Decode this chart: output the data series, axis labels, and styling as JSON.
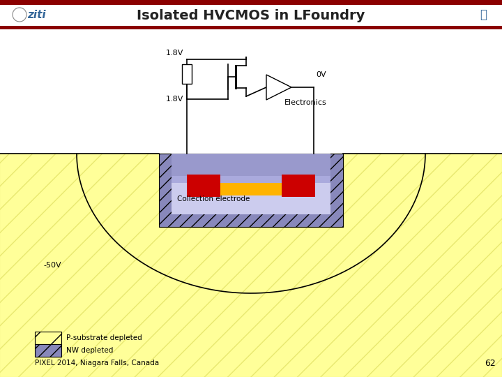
{
  "title": "Isolated HVCMOS in LFoundry",
  "title_color": "#222222",
  "header_bar_color": "#8B0000",
  "header_bg": "#ffffff",
  "fig_bg": "#ffffff",
  "label_1_8v_top": "1.8V",
  "label_0v": "0V",
  "label_1_8v_left": "1.8V",
  "label_minus50v": "-50V",
  "label_electronics": "Electronics",
  "label_collection": "Collection electrode",
  "label_psub": "P-substrate depleted",
  "label_nw": "NW depleted",
  "label_pixel": "PIXEL 2014, Niagara Falls, Canada",
  "label_page": "62",
  "color_psub_yellow": "#FFFFF0",
  "color_psub_yellow2": "#FFFF99",
  "color_nw_purple": "#8888BB",
  "color_nw_purple2": "#9999CC",
  "color_nw_light": "#AAAACC",
  "color_orange": "#FFB300",
  "color_red": "#CC0000",
  "color_collection": "#CCCCEE",
  "color_black": "#000000",
  "color_white": "#ffffff",
  "color_hatch_yellow": "#E8E870",
  "color_hatch_nw": "#6666AA"
}
